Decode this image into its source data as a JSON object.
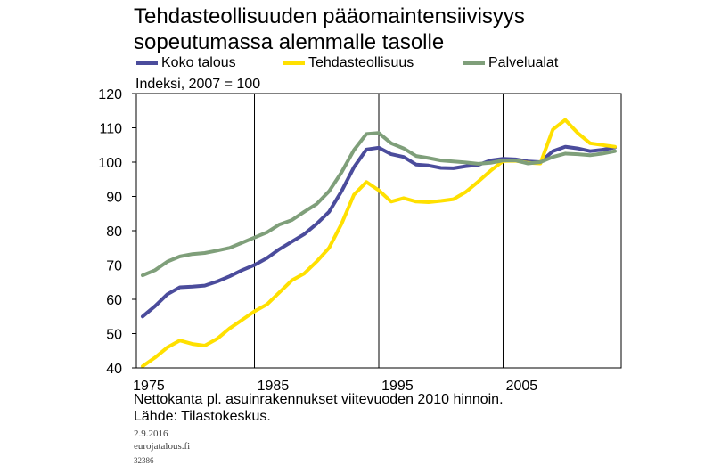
{
  "title_line1": "Tehdasteollisuuden pääomaintensiivisyys",
  "title_line2": "sopeutumassa alemmalle tasolle",
  "source_note": "Nettokanta pl. asuinrakennukset viitevuoden 2010 hinnoin.",
  "source": "Lähde: Tilastokeskus.",
  "date": "2.9.2016",
  "site": "eurojatalous.fi",
  "code": "32386",
  "chart_data": {
    "type": "line",
    "title": "Tehdasteollisuuden pääomaintensiivisyys sopeutumassa alemmalle tasolle",
    "ylabel": "Indeksi, 2007 = 100",
    "xlabel": "",
    "ylim": [
      40,
      120
    ],
    "xlim": [
      1975,
      2013
    ],
    "yticks": [
      40,
      50,
      60,
      70,
      80,
      90,
      100,
      110,
      120
    ],
    "xticks": [
      "1975",
      "1985",
      "1995",
      "2005"
    ],
    "grid": "vertical",
    "legend": "top",
    "x": [
      1975,
      1976,
      1977,
      1978,
      1979,
      1980,
      1981,
      1982,
      1983,
      1984,
      1985,
      1986,
      1987,
      1988,
      1989,
      1990,
      1991,
      1992,
      1993,
      1994,
      1995,
      1996,
      1997,
      1998,
      1999,
      2000,
      2001,
      2002,
      2003,
      2004,
      2005,
      2006,
      2007,
      2008,
      2009,
      2010,
      2011,
      2012,
      2013
    ],
    "series": [
      {
        "name": "Koko talous",
        "color": "#4b4c9c",
        "values": [
          55,
          58,
          61.5,
          63.5,
          63.7,
          64,
          65.2,
          66.7,
          68.5,
          70,
          72,
          74.6,
          76.8,
          79,
          82,
          85.5,
          91.5,
          98.5,
          103.7,
          104.2,
          102.3,
          101.5,
          99.3,
          99,
          98.3,
          98.2,
          98.8,
          99.2,
          100.5,
          101,
          100.8,
          100.2,
          100,
          103.2,
          104.5,
          104,
          103.2,
          103.6,
          104.3
        ]
      },
      {
        "name": "Tehdasteollisuus",
        "color": "#ffe000",
        "values": [
          40.5,
          43,
          46,
          48,
          47,
          46.5,
          48.5,
          51.5,
          54,
          56.5,
          58.5,
          62,
          65.5,
          67.5,
          71,
          75,
          82,
          90.5,
          94.2,
          91.8,
          88.5,
          89.5,
          88.5,
          88.3,
          88.7,
          89.2,
          91.3,
          94.3,
          97.5,
          100.3,
          100.4,
          99.8,
          99.6,
          109.5,
          112.3,
          108.5,
          105.5,
          105,
          104.5
        ]
      },
      {
        "name": "Palvelualat",
        "color": "#7f9f7a",
        "values": [
          67,
          68.5,
          71,
          72.5,
          73.2,
          73.5,
          74.2,
          75,
          76.5,
          78,
          79.5,
          81.8,
          83.1,
          85.5,
          87.8,
          91.5,
          97,
          103.5,
          108.2,
          108.5,
          105.5,
          104,
          101.8,
          101.2,
          100.5,
          100.2,
          99.9,
          99.5,
          99.8,
          100.5,
          100.5,
          99.6,
          100,
          101.5,
          102.5,
          102.3,
          102,
          102.5,
          103.2
        ]
      }
    ]
  }
}
